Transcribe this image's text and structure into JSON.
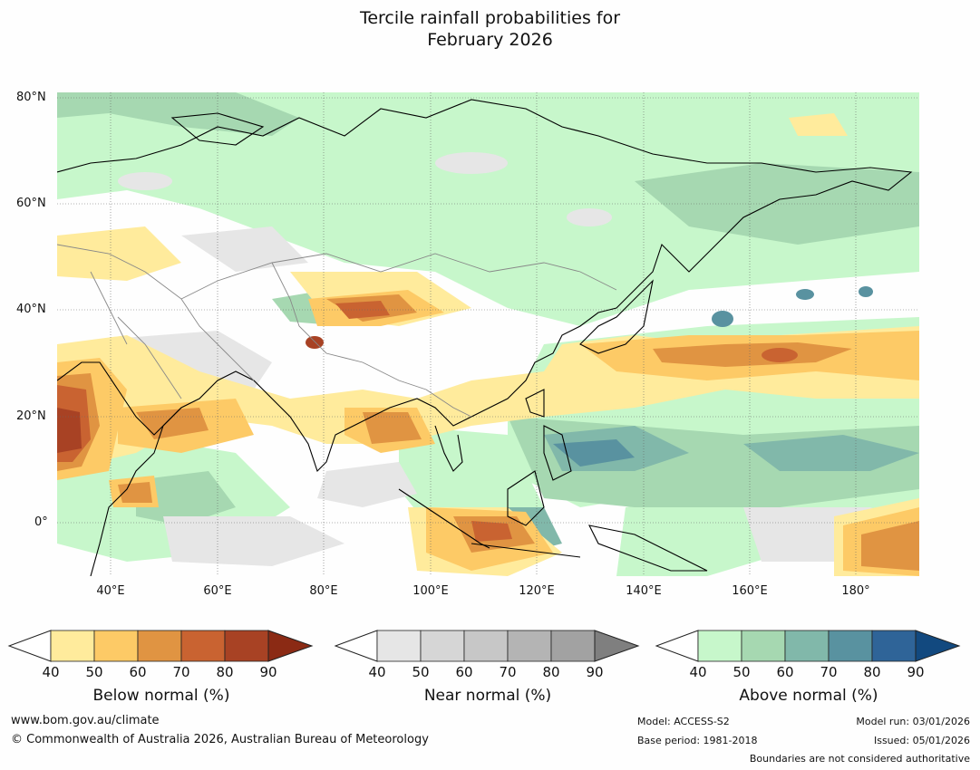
{
  "title": {
    "line1": "Tercile rainfall probabilities for",
    "line2": "February 2026"
  },
  "map": {
    "region": "Asia and western Pacific",
    "lat_labels": [
      "80°N",
      "60°N",
      "40°N",
      "20°N",
      "0°"
    ],
    "lon_labels": [
      "40°E",
      "60°E",
      "80°E",
      "100°E",
      "120°E",
      "140°E",
      "160°E",
      "180°"
    ]
  },
  "legends": [
    {
      "title": "Below normal (%)",
      "ticks": [
        "40",
        "50",
        "60",
        "70",
        "80",
        "90"
      ],
      "colors": [
        "#ffeb9c",
        "#fdca66",
        "#e09442",
        "#c96331",
        "#a84224",
        "#8b2a14"
      ]
    },
    {
      "title": "Near normal (%)",
      "ticks": [
        "40",
        "50",
        "60",
        "70",
        "80",
        "90"
      ],
      "colors": [
        "#e6e6e6",
        "#d6d6d6",
        "#c7c7c7",
        "#b4b4b4",
        "#a2a2a2",
        "#7f7f7f"
      ]
    },
    {
      "title": "Above normal (%)",
      "ticks": [
        "40",
        "50",
        "60",
        "70",
        "80",
        "90"
      ],
      "colors": [
        "#c7f7cb",
        "#a6d8b1",
        "#81b8aa",
        "#5992a0",
        "#2f6498",
        "#12497f"
      ]
    }
  ],
  "footer": {
    "website": "www.bom.gov.au/climate",
    "copyright": "© Commonwealth of Australia 2026, Australian Bureau of Meteorology",
    "model": "Model: ACCESS-S2",
    "base_period": "Base period: 1981-2018",
    "model_run": "Model run: 03/01/2026",
    "issued": "Issued: 05/01/2026",
    "disclaimer": "Boundaries are not considered authoritative"
  }
}
